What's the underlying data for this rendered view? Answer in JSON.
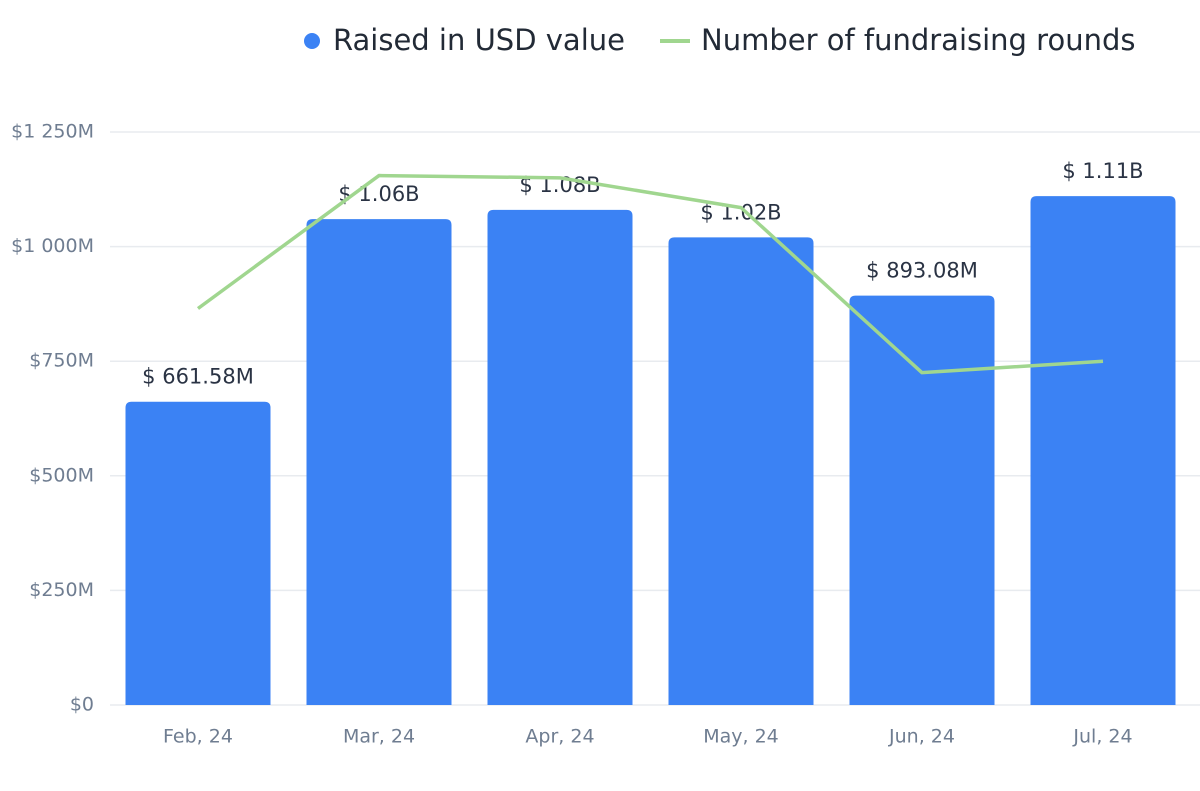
{
  "chart_data": {
    "type": "bar",
    "categories": [
      "Feb, 24",
      "Mar, 24",
      "Apr, 24",
      "May, 24",
      "Jun, 24",
      "Jul, 24"
    ],
    "series": [
      {
        "name": "Raised in USD value",
        "type": "bar",
        "color": "#3b82f4",
        "values": [
          661580000,
          1060000000,
          1080000000,
          1020000000,
          893080000,
          1110000000
        ],
        "value_labels": [
          "$ 661.58M",
          "$ 1.06B",
          "$ 1.08B",
          "$ 1.02B",
          "$ 893.08M",
          "$ 1.11B"
        ]
      },
      {
        "name": "Number of fundraising rounds",
        "type": "line",
        "color": "#a0d68f",
        "axis": "y2",
        "values": [
          173,
          231,
          230,
          217,
          145,
          150
        ]
      }
    ],
    "ylim": [
      0,
      1250000000
    ],
    "yticks": [
      {
        "value": 0,
        "label": "$0"
      },
      {
        "value": 250000000,
        "label": "$250M"
      },
      {
        "value": 500000000,
        "label": "$500M"
      },
      {
        "value": 750000000,
        "label": "$750M"
      },
      {
        "value": 1000000000,
        "label": "$1 000M"
      },
      {
        "value": 1250000000,
        "label": "$1 250M"
      }
    ],
    "y2lim": [
      0,
      250
    ],
    "grid": true,
    "legend": "top"
  }
}
